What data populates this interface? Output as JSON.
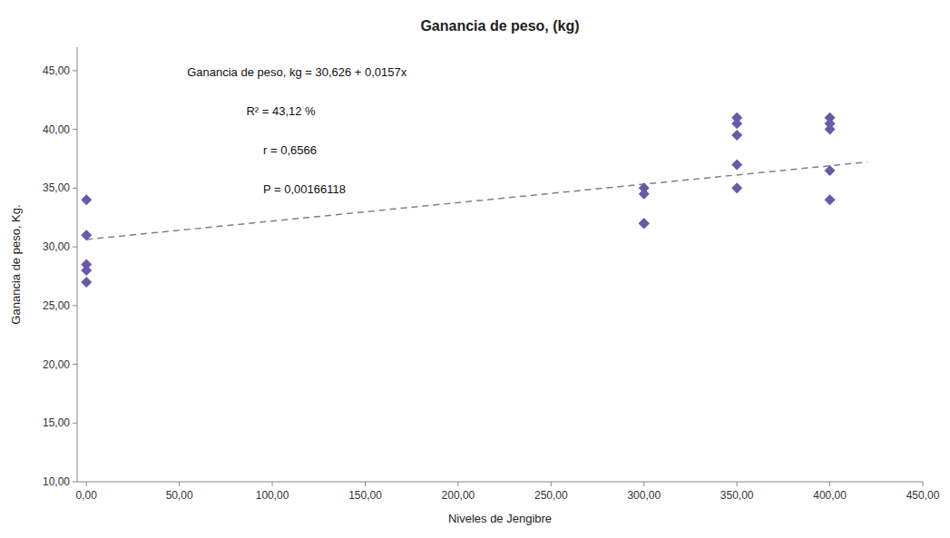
{
  "chart_data": {
    "type": "scatter",
    "title": "Ganancia de peso, (kg)",
    "x_label": "Niveles de Jengibre",
    "y_label": "Ganancia de peso, Kg.",
    "annotations": [
      "Ganancia de peso, kg = 30,626  + 0,0157x",
      "R² = 43,12 %",
      "r = 0,6566",
      "P = 0,00166118"
    ],
    "series": [
      {
        "type": "scatter",
        "color": "#6959a8",
        "marker": "diamond",
        "x": [
          0,
          0,
          0,
          0,
          0,
          300,
          300,
          300,
          300,
          350,
          350,
          350,
          350,
          350,
          400,
          400,
          400,
          400,
          400
        ],
        "values": [
          34.0,
          31.0,
          28.5,
          28.0,
          27.0,
          35.0,
          34.5,
          32.0,
          32.0,
          41.0,
          40.5,
          39.5,
          37.0,
          35.0,
          41.0,
          40.5,
          40.0,
          36.5,
          34.0
        ]
      },
      {
        "type": "line",
        "color": "#808080",
        "line_style": "dashed",
        "x": [
          0,
          420
        ],
        "values": [
          30.626,
          37.22
        ]
      }
    ],
    "xlim": [
      -5,
      450
    ],
    "ylim": [
      10,
      47
    ],
    "xticks": [
      {
        "value": 0,
        "label": "0,00"
      },
      {
        "value": 50,
        "label": "50,00"
      },
      {
        "value": 100,
        "label": "100,00"
      },
      {
        "value": 150,
        "label": "150,00"
      },
      {
        "value": 200,
        "label": "200,00"
      },
      {
        "value": 250,
        "label": "250,00"
      },
      {
        "value": 300,
        "label": "300,00"
      },
      {
        "value": 350,
        "label": "350,00"
      },
      {
        "value": 400,
        "label": "400,00"
      },
      {
        "value": 450,
        "label": "450,00"
      }
    ],
    "yticks": [
      {
        "value": 10,
        "label": "10,00"
      },
      {
        "value": 15,
        "label": "15,00"
      },
      {
        "value": 20,
        "label": "20,00"
      },
      {
        "value": 25,
        "label": "25,00"
      },
      {
        "value": 30,
        "label": "30,00"
      },
      {
        "value": 35,
        "label": "35,00"
      },
      {
        "value": 40,
        "label": "40,00"
      },
      {
        "value": 45,
        "label": "45,00"
      }
    ],
    "grid": false
  }
}
